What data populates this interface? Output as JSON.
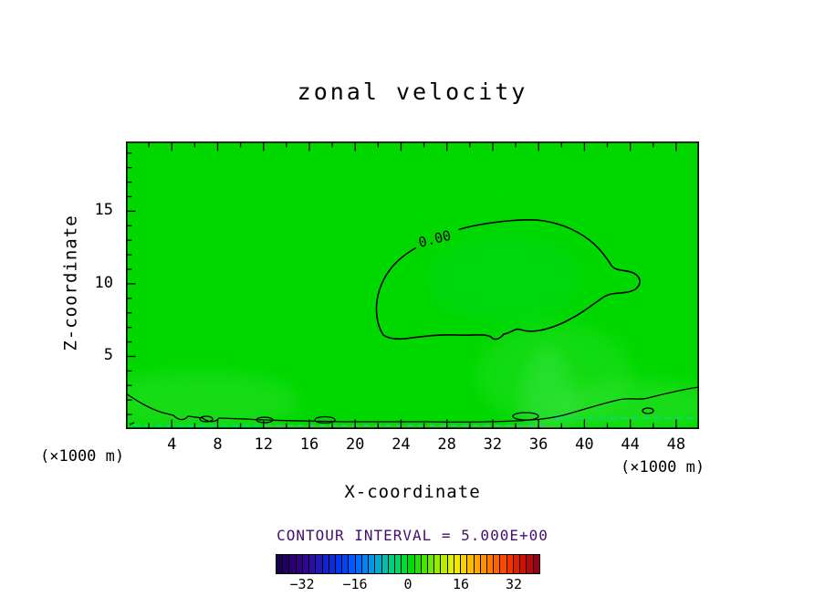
{
  "title": "zonal velocity",
  "colors": {
    "field": "#00d800",
    "field_light": "#45e545",
    "contour_line": "#000000",
    "dashed_line": "#00d8b0",
    "interval_text": "#44106e",
    "frame": "#000000"
  },
  "axes": {
    "x": {
      "label": "X-coordinate",
      "units": "(×1000 m)",
      "min": 0,
      "max": 50,
      "minor_step": 2,
      "major_step": 4,
      "ticks": [
        {
          "value": 4,
          "label": "4"
        },
        {
          "value": 8,
          "label": "8"
        },
        {
          "value": 12,
          "label": "12"
        },
        {
          "value": 16,
          "label": "16"
        },
        {
          "value": 20,
          "label": "20"
        },
        {
          "value": 24,
          "label": "24"
        },
        {
          "value": 28,
          "label": "28"
        },
        {
          "value": 32,
          "label": "32"
        },
        {
          "value": 36,
          "label": "36"
        },
        {
          "value": 40,
          "label": "40"
        },
        {
          "value": 44,
          "label": "44"
        },
        {
          "value": 48,
          "label": "48"
        }
      ]
    },
    "z": {
      "label": "Z-coordinate",
      "units": "(×1000 m)",
      "min": 0,
      "max": 19.8,
      "minor_step": 1,
      "major_step": 5,
      "ticks": [
        {
          "value": 5,
          "label": "5"
        },
        {
          "value": 10,
          "label": "10"
        },
        {
          "value": 15,
          "label": "15"
        }
      ]
    }
  },
  "contour": {
    "zero_label": "0.00",
    "interval_label": "CONTOUR INTERVAL = 5.000E+00"
  },
  "colorbar": {
    "min": -40,
    "max": 40,
    "cells": [
      "#1a0050",
      "#220060",
      "#2a0070",
      "#300080",
      "#2d0892",
      "#2810a4",
      "#2018b6",
      "#1622c8",
      "#0c2cda",
      "#0336ec",
      "#0044fa",
      "#0058ff",
      "#006cff",
      "#0082f8",
      "#0098e6",
      "#00accd",
      "#00bfae",
      "#00cd86",
      "#00d75c",
      "#00dc30",
      "#00dc08",
      "#22e000",
      "#48e400",
      "#6ee800",
      "#94ec00",
      "#baee00",
      "#dff000",
      "#f4e800",
      "#f8d200",
      "#fcbc00",
      "#ffa600",
      "#ff9000",
      "#ff7800",
      "#ff6000",
      "#fc4800",
      "#f03200",
      "#e02000",
      "#cc1208",
      "#b4080e",
      "#980014"
    ],
    "ticks": [
      {
        "value": -32,
        "label": "−32"
      },
      {
        "value": -16,
        "label": "−16"
      },
      {
        "value": 0,
        "label": "0"
      },
      {
        "value": 16,
        "label": "16"
      },
      {
        "value": 32,
        "label": "32"
      }
    ]
  },
  "chart_data": {
    "type": "heatmap",
    "title": "zonal velocity",
    "xlabel": "X-coordinate (×1000 m)",
    "ylabel": "Z-coordinate (×1000 m)",
    "x_range": [
      0,
      50
    ],
    "z_range": [
      0,
      19.8
    ],
    "x_ticks": [
      4,
      8,
      12,
      16,
      20,
      24,
      28,
      32,
      36,
      40,
      44,
      48
    ],
    "z_ticks": [
      5,
      10,
      15
    ],
    "contour_interval": 5.0,
    "contour_levels_visible": [
      0.0
    ],
    "colorbar_range": [
      -40,
      40
    ],
    "colorbar_ticks": [
      -32,
      -16,
      0,
      16,
      32
    ],
    "field_summary": "Field is nearly uniform green (values between 0 and +5). A closed 0.00 contour labeled '0.00' encloses a weakly negative region spanning roughly x=22-45 (×1000 m), z=5.5-14 (×1000 m). Near-surface structure below z≈1.5 shows a zero contour hugging the bottom boundary with several small closed cells and dashed (negative) contour segments."
  }
}
